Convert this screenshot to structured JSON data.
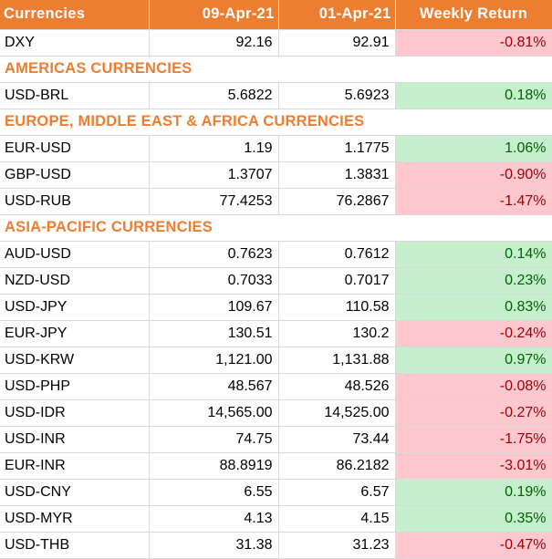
{
  "header": {
    "col_currency": "Currencies",
    "col_date1": "09-Apr-21",
    "col_date2": "01-Apr-21",
    "col_return": "Weekly Return"
  },
  "colors": {
    "header_bg": "#ed7d31",
    "section_text": "#ed7d31",
    "negative_fill": "#ffc7ce",
    "negative_text": "#9c0006",
    "positive_fill": "#c6efce",
    "positive_text": "#006100"
  },
  "rows": [
    {
      "type": "data",
      "pair": "DXY",
      "v1": "92.16",
      "v2": "92.91",
      "ret": "-0.81%",
      "sign": "neg"
    },
    {
      "type": "section",
      "label": "AMERICAS CURRENCIES"
    },
    {
      "type": "data",
      "pair": "USD-BRL",
      "v1": "5.6822",
      "v2": "5.6923",
      "ret": "0.18%",
      "sign": "pos"
    },
    {
      "type": "section",
      "label": "EUROPE, MIDDLE EAST & AFRICA CURRENCIES"
    },
    {
      "type": "data",
      "pair": "EUR-USD",
      "v1": "1.19",
      "v2": "1.1775",
      "ret": "1.06%",
      "sign": "pos"
    },
    {
      "type": "data",
      "pair": "GBP-USD",
      "v1": "1.3707",
      "v2": "1.3831",
      "ret": "-0.90%",
      "sign": "neg"
    },
    {
      "type": "data",
      "pair": "USD-RUB",
      "v1": "77.4253",
      "v2": "76.2867",
      "ret": "-1.47%",
      "sign": "neg"
    },
    {
      "type": "section",
      "label": "ASIA-PACIFIC CURRENCIES"
    },
    {
      "type": "data",
      "pair": "AUD-USD",
      "v1": "0.7623",
      "v2": "0.7612",
      "ret": "0.14%",
      "sign": "pos"
    },
    {
      "type": "data",
      "pair": "NZD-USD",
      "v1": "0.7033",
      "v2": "0.7017",
      "ret": "0.23%",
      "sign": "pos"
    },
    {
      "type": "data",
      "pair": "USD-JPY",
      "v1": "109.67",
      "v2": "110.58",
      "ret": "0.83%",
      "sign": "pos"
    },
    {
      "type": "data",
      "pair": "EUR-JPY",
      "v1": "130.51",
      "v2": "130.2",
      "ret": "-0.24%",
      "sign": "neg"
    },
    {
      "type": "data",
      "pair": "USD-KRW",
      "v1": "1,121.00",
      "v2": "1,131.88",
      "ret": "0.97%",
      "sign": "pos"
    },
    {
      "type": "data",
      "pair": "USD-PHP",
      "v1": "48.567",
      "v2": "48.526",
      "ret": "-0.08%",
      "sign": "neg"
    },
    {
      "type": "data",
      "pair": "USD-IDR",
      "v1": "14,565.00",
      "v2": "14,525.00",
      "ret": "-0.27%",
      "sign": "neg"
    },
    {
      "type": "data",
      "pair": "USD-INR",
      "v1": "74.75",
      "v2": "73.44",
      "ret": "-1.75%",
      "sign": "neg"
    },
    {
      "type": "data",
      "pair": "EUR-INR",
      "v1": "88.8919",
      "v2": "86.2182",
      "ret": "-3.01%",
      "sign": "neg"
    },
    {
      "type": "data",
      "pair": "USD-CNY",
      "v1": "6.55",
      "v2": "6.57",
      "ret": "0.19%",
      "sign": "pos"
    },
    {
      "type": "data",
      "pair": "USD-MYR",
      "v1": "4.13",
      "v2": "4.15",
      "ret": "0.35%",
      "sign": "pos"
    },
    {
      "type": "data",
      "pair": "USD-THB",
      "v1": "31.38",
      "v2": "31.23",
      "ret": "-0.47%",
      "sign": "neg"
    }
  ]
}
